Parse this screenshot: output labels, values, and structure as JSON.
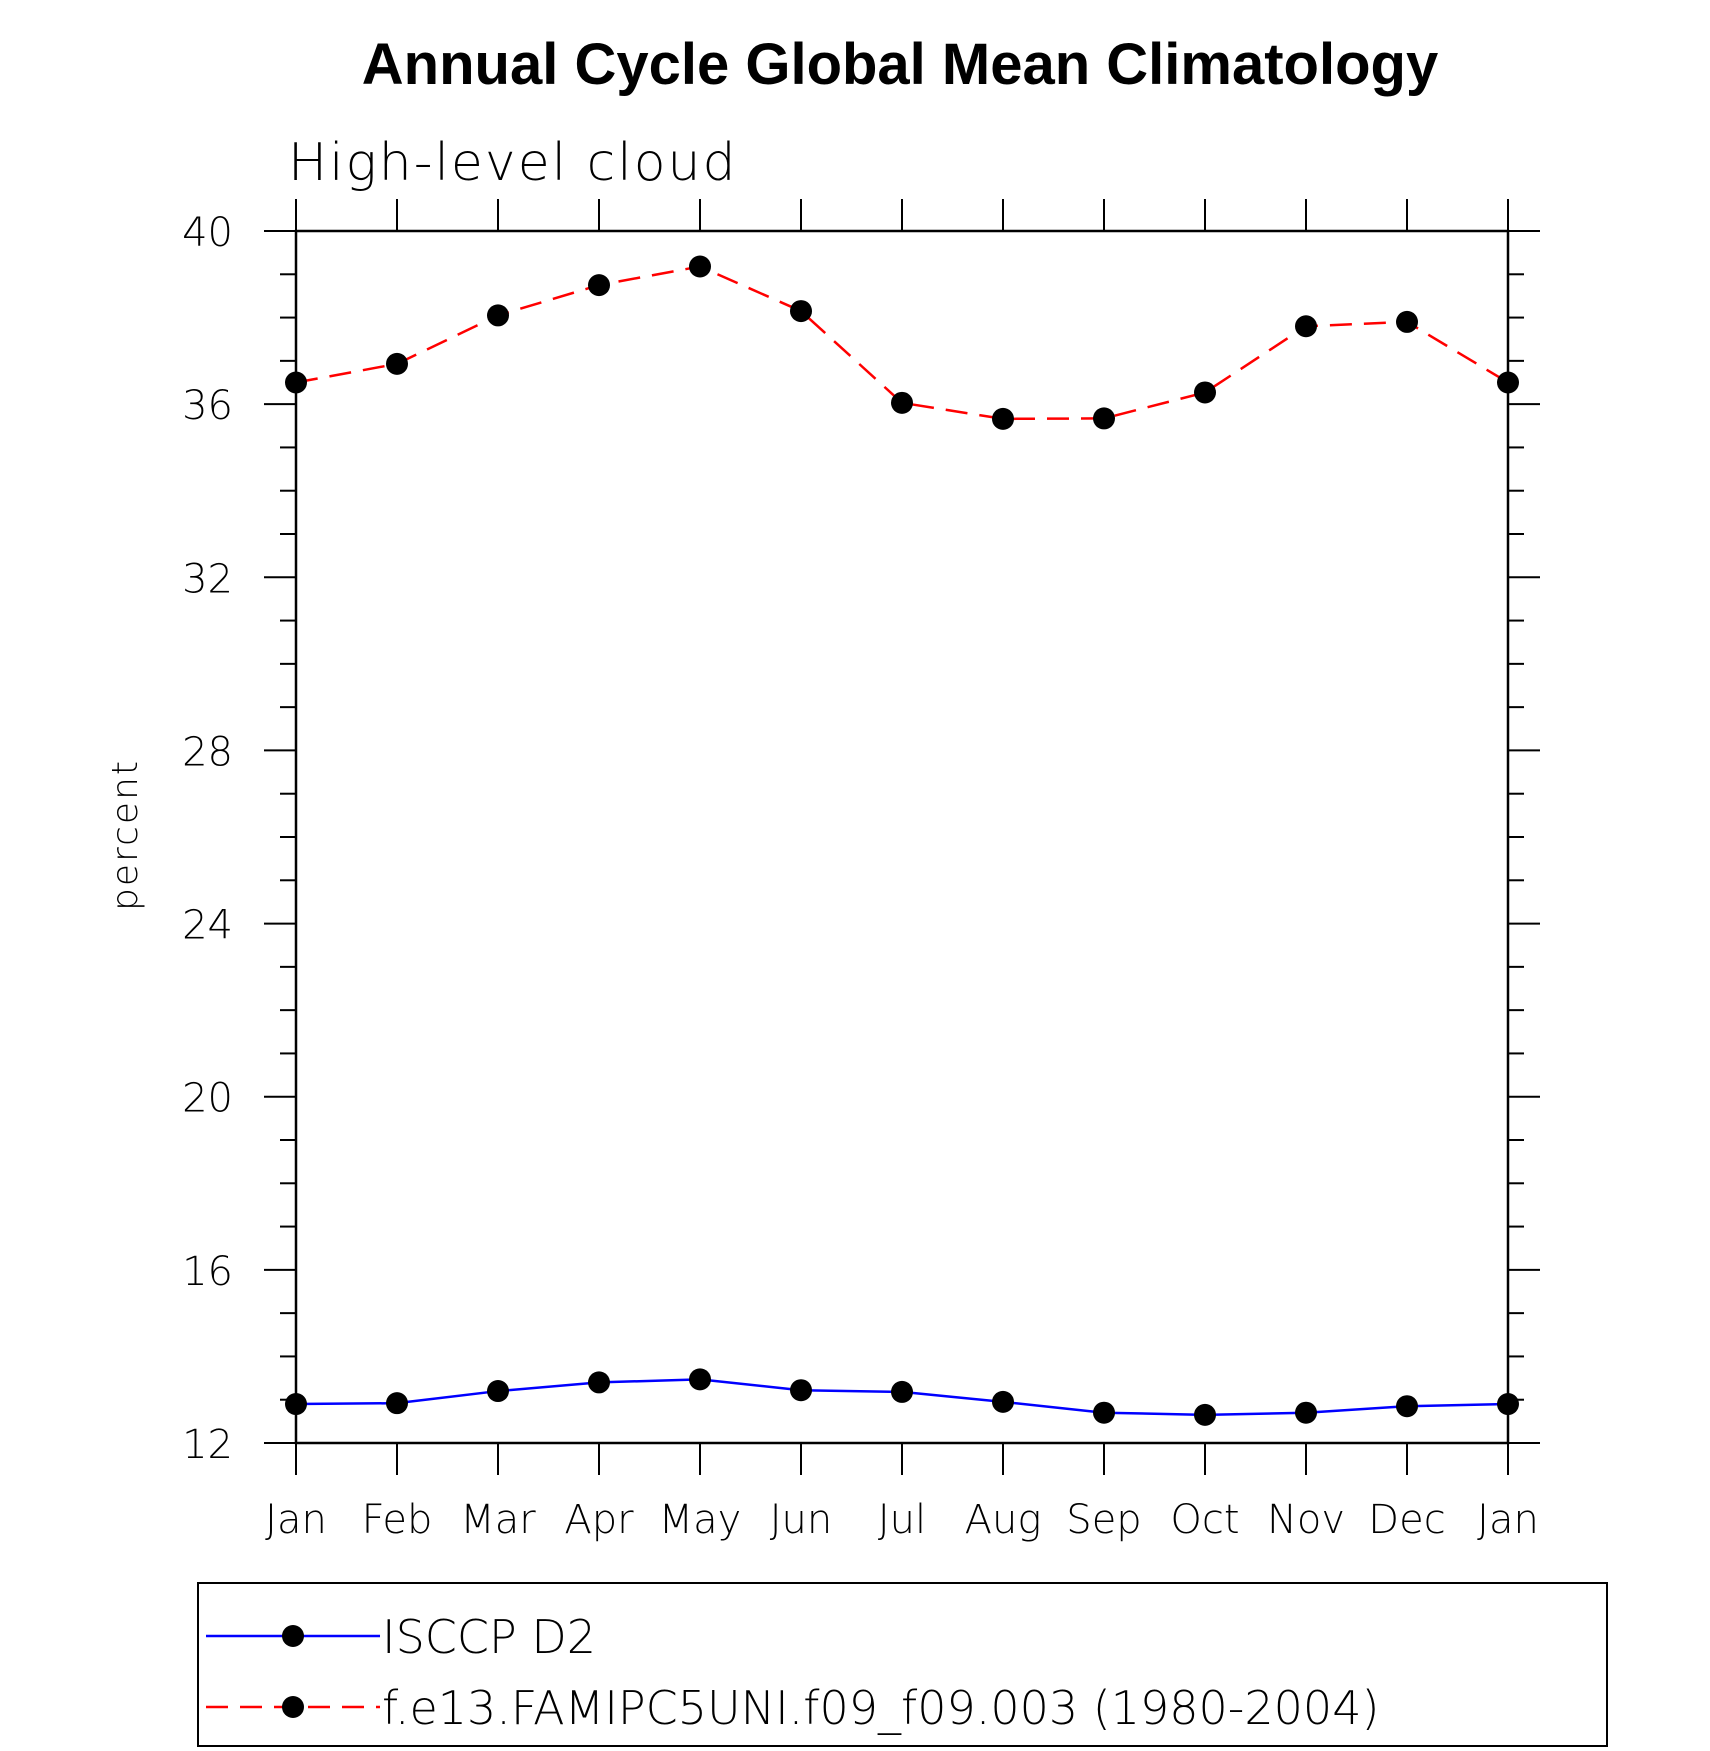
{
  "chart_data": {
    "type": "line",
    "title": "Annual Cycle Global Mean Climatology",
    "subtitle": "High-level cloud",
    "ylabel": "percent",
    "xlabel": "",
    "ylim": [
      12,
      40
    ],
    "y_ticks": [
      "12",
      "16",
      "20",
      "24",
      "28",
      "32",
      "36",
      "40"
    ],
    "categories": [
      "Jan",
      "Feb",
      "Mar",
      "Apr",
      "May",
      "Jun",
      "Jul",
      "Aug",
      "Sep",
      "Oct",
      "Nov",
      "Dec",
      "Jan"
    ],
    "series": [
      {
        "name": "ISCCP D2",
        "color": "#0000ff",
        "line_style": "solid",
        "marker": "filled-circle",
        "values": [
          12.9,
          12.92,
          13.2,
          13.4,
          13.47,
          13.22,
          13.18,
          12.95,
          12.7,
          12.65,
          12.7,
          12.85,
          12.9
        ]
      },
      {
        "name": "f.e13.FAMIPC5UNI.f09_f09.003 (1980-2004)",
        "color": "#ff0000",
        "line_style": "dashed",
        "marker": "filled-circle",
        "values": [
          36.5,
          36.93,
          38.05,
          38.75,
          39.18,
          38.15,
          36.03,
          35.66,
          35.67,
          36.27,
          37.8,
          37.9,
          36.5
        ]
      }
    ]
  }
}
